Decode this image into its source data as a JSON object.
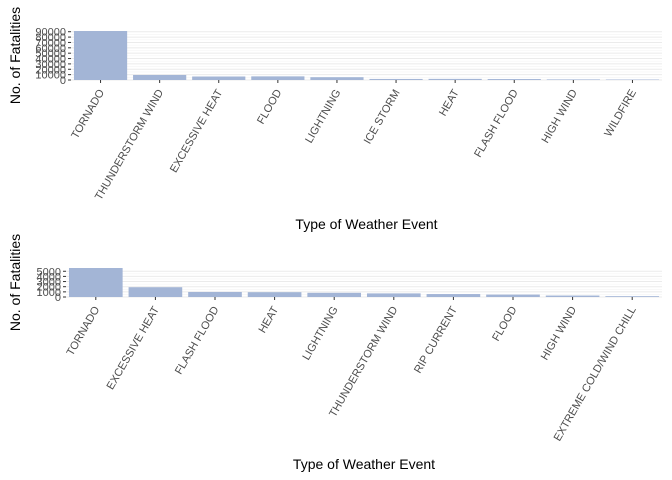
{
  "colors": {
    "bar": "#a3b5d6",
    "grid": "#ebebeb",
    "axis": "#333333"
  },
  "chart_data": [
    {
      "type": "bar",
      "xlabel": "Type of Weather Event",
      "ylabel": "No. of Fatalities",
      "grid": true,
      "ylim": [
        0,
        91346
      ],
      "yticks": [
        0,
        10000,
        20000,
        30000,
        40000,
        50000,
        60000,
        70000,
        80000,
        90000
      ],
      "yticklabels": [
        "0",
        "10000",
        "20000",
        "30000",
        "40000",
        "50000",
        "60000",
        "70000",
        "80000",
        "90000"
      ],
      "categories": [
        "TORNADO",
        "THUNDERSTORM WIND",
        "EXCESSIVE HEAT",
        "FLOOD",
        "LIGHTNING",
        "ICE STORM",
        "HEAT",
        "FLASH FLOOD",
        "HIGH WIND",
        "WILDFIRE"
      ],
      "values": [
        91346,
        9353,
        6525,
        6789,
        5230,
        1975,
        2100,
        1777,
        1137,
        911
      ]
    },
    {
      "type": "bar",
      "xlabel": "Type of Weather Event",
      "ylabel": "No. of Fatalities",
      "grid": true,
      "ylim": [
        0,
        5633
      ],
      "yticks": [
        0,
        1000,
        2000,
        3000,
        4000,
        5000
      ],
      "yticklabels": [
        "0",
        "1000",
        "2000",
        "3000",
        "4000",
        "5000"
      ],
      "categories": [
        "TORNADO",
        "EXCESSIVE HEAT",
        "FLASH FLOOD",
        "HEAT",
        "LIGHTNING",
        "THUNDERSTORM WIND",
        "RIP CURRENT",
        "FLOOD",
        "HIGH WIND",
        "EXTREME COLD/WIND CHILL"
      ],
      "values": [
        5633,
        1903,
        978,
        937,
        816,
        701,
        572,
        470,
        283,
        160
      ]
    }
  ]
}
